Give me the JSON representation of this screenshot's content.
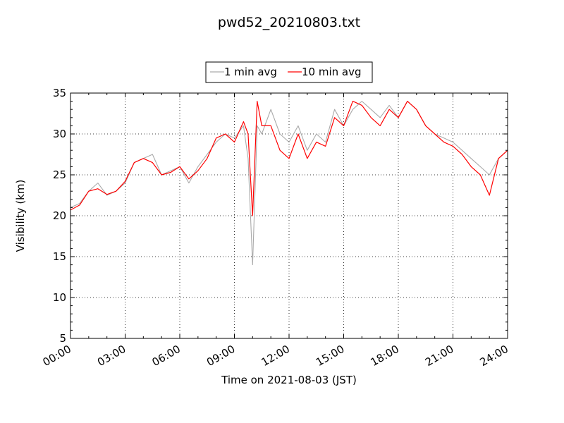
{
  "chart_data": {
    "type": "line",
    "title": "pwd52_20210803.txt",
    "xlabel": "Time on 2021-08-03 (JST)",
    "ylabel": "Visibility (km)",
    "xlim": [
      "00:00",
      "24:00"
    ],
    "ylim": [
      5,
      35
    ],
    "x_ticks": [
      "00:00",
      "03:00",
      "06:00",
      "09:00",
      "12:00",
      "15:00",
      "18:00",
      "21:00",
      "24:00"
    ],
    "y_ticks": [
      "5",
      "10",
      "15",
      "20",
      "25",
      "30",
      "35"
    ],
    "grid": true,
    "legend_position": "top-center",
    "series": [
      {
        "name": "1 min avg",
        "color": "#aaaaaa",
        "x": [
          "00:00",
          "00:30",
          "01:00",
          "01:30",
          "02:00",
          "02:30",
          "03:00",
          "03:30",
          "04:00",
          "04:30",
          "05:00",
          "05:30",
          "06:00",
          "06:30",
          "07:00",
          "07:30",
          "08:00",
          "08:30",
          "09:00",
          "09:30",
          "09:45",
          "10:00",
          "10:15",
          "10:30",
          "11:00",
          "11:30",
          "12:00",
          "12:30",
          "13:00",
          "13:30",
          "14:00",
          "14:30",
          "15:00",
          "15:30",
          "16:00",
          "16:30",
          "17:00",
          "17:30",
          "18:00",
          "18:30",
          "19:00",
          "19:30",
          "20:00",
          "20:30",
          "21:00",
          "21:30",
          "22:00",
          "22:30",
          "23:00",
          "23:30",
          "24:00"
        ],
        "values": [
          21,
          21.5,
          23,
          24,
          22.5,
          23,
          24,
          26.5,
          27,
          27.5,
          25,
          25.5,
          26,
          24,
          26,
          27.5,
          29,
          30,
          29.5,
          31,
          27,
          14,
          31,
          30,
          33,
          30,
          29,
          31,
          28,
          30,
          29,
          33,
          31,
          33,
          34,
          33,
          32,
          33.5,
          32,
          34,
          33,
          31,
          30,
          29.5,
          29,
          28,
          27,
          26,
          25,
          27,
          28
        ]
      },
      {
        "name": "10 min avg",
        "color": "#ff0000",
        "x": [
          "00:00",
          "00:30",
          "01:00",
          "01:30",
          "02:00",
          "02:30",
          "03:00",
          "03:30",
          "04:00",
          "04:30",
          "05:00",
          "05:30",
          "06:00",
          "06:30",
          "07:00",
          "07:30",
          "08:00",
          "08:30",
          "09:00",
          "09:30",
          "09:45",
          "10:00",
          "10:15",
          "10:30",
          "11:00",
          "11:30",
          "12:00",
          "12:30",
          "13:00",
          "13:30",
          "14:00",
          "14:30",
          "15:00",
          "15:30",
          "16:00",
          "16:30",
          "17:00",
          "17:30",
          "18:00",
          "18:30",
          "19:00",
          "19:30",
          "20:00",
          "20:30",
          "21:00",
          "21:30",
          "22:00",
          "22:30",
          "23:00",
          "23:30",
          "24:00"
        ],
        "values": [
          20.7,
          21.3,
          23,
          23.3,
          22.6,
          23,
          24.2,
          26.5,
          27,
          26.5,
          25,
          25.3,
          26,
          24.5,
          25.5,
          27,
          29.5,
          30,
          29,
          31.5,
          30,
          20,
          34,
          31,
          31,
          28,
          27,
          30,
          27,
          29,
          28.5,
          32,
          31,
          34,
          33.5,
          32,
          31,
          33,
          32,
          34,
          33,
          31,
          30,
          29,
          28.5,
          27.5,
          26,
          25,
          22.5,
          27,
          28
        ]
      }
    ]
  }
}
